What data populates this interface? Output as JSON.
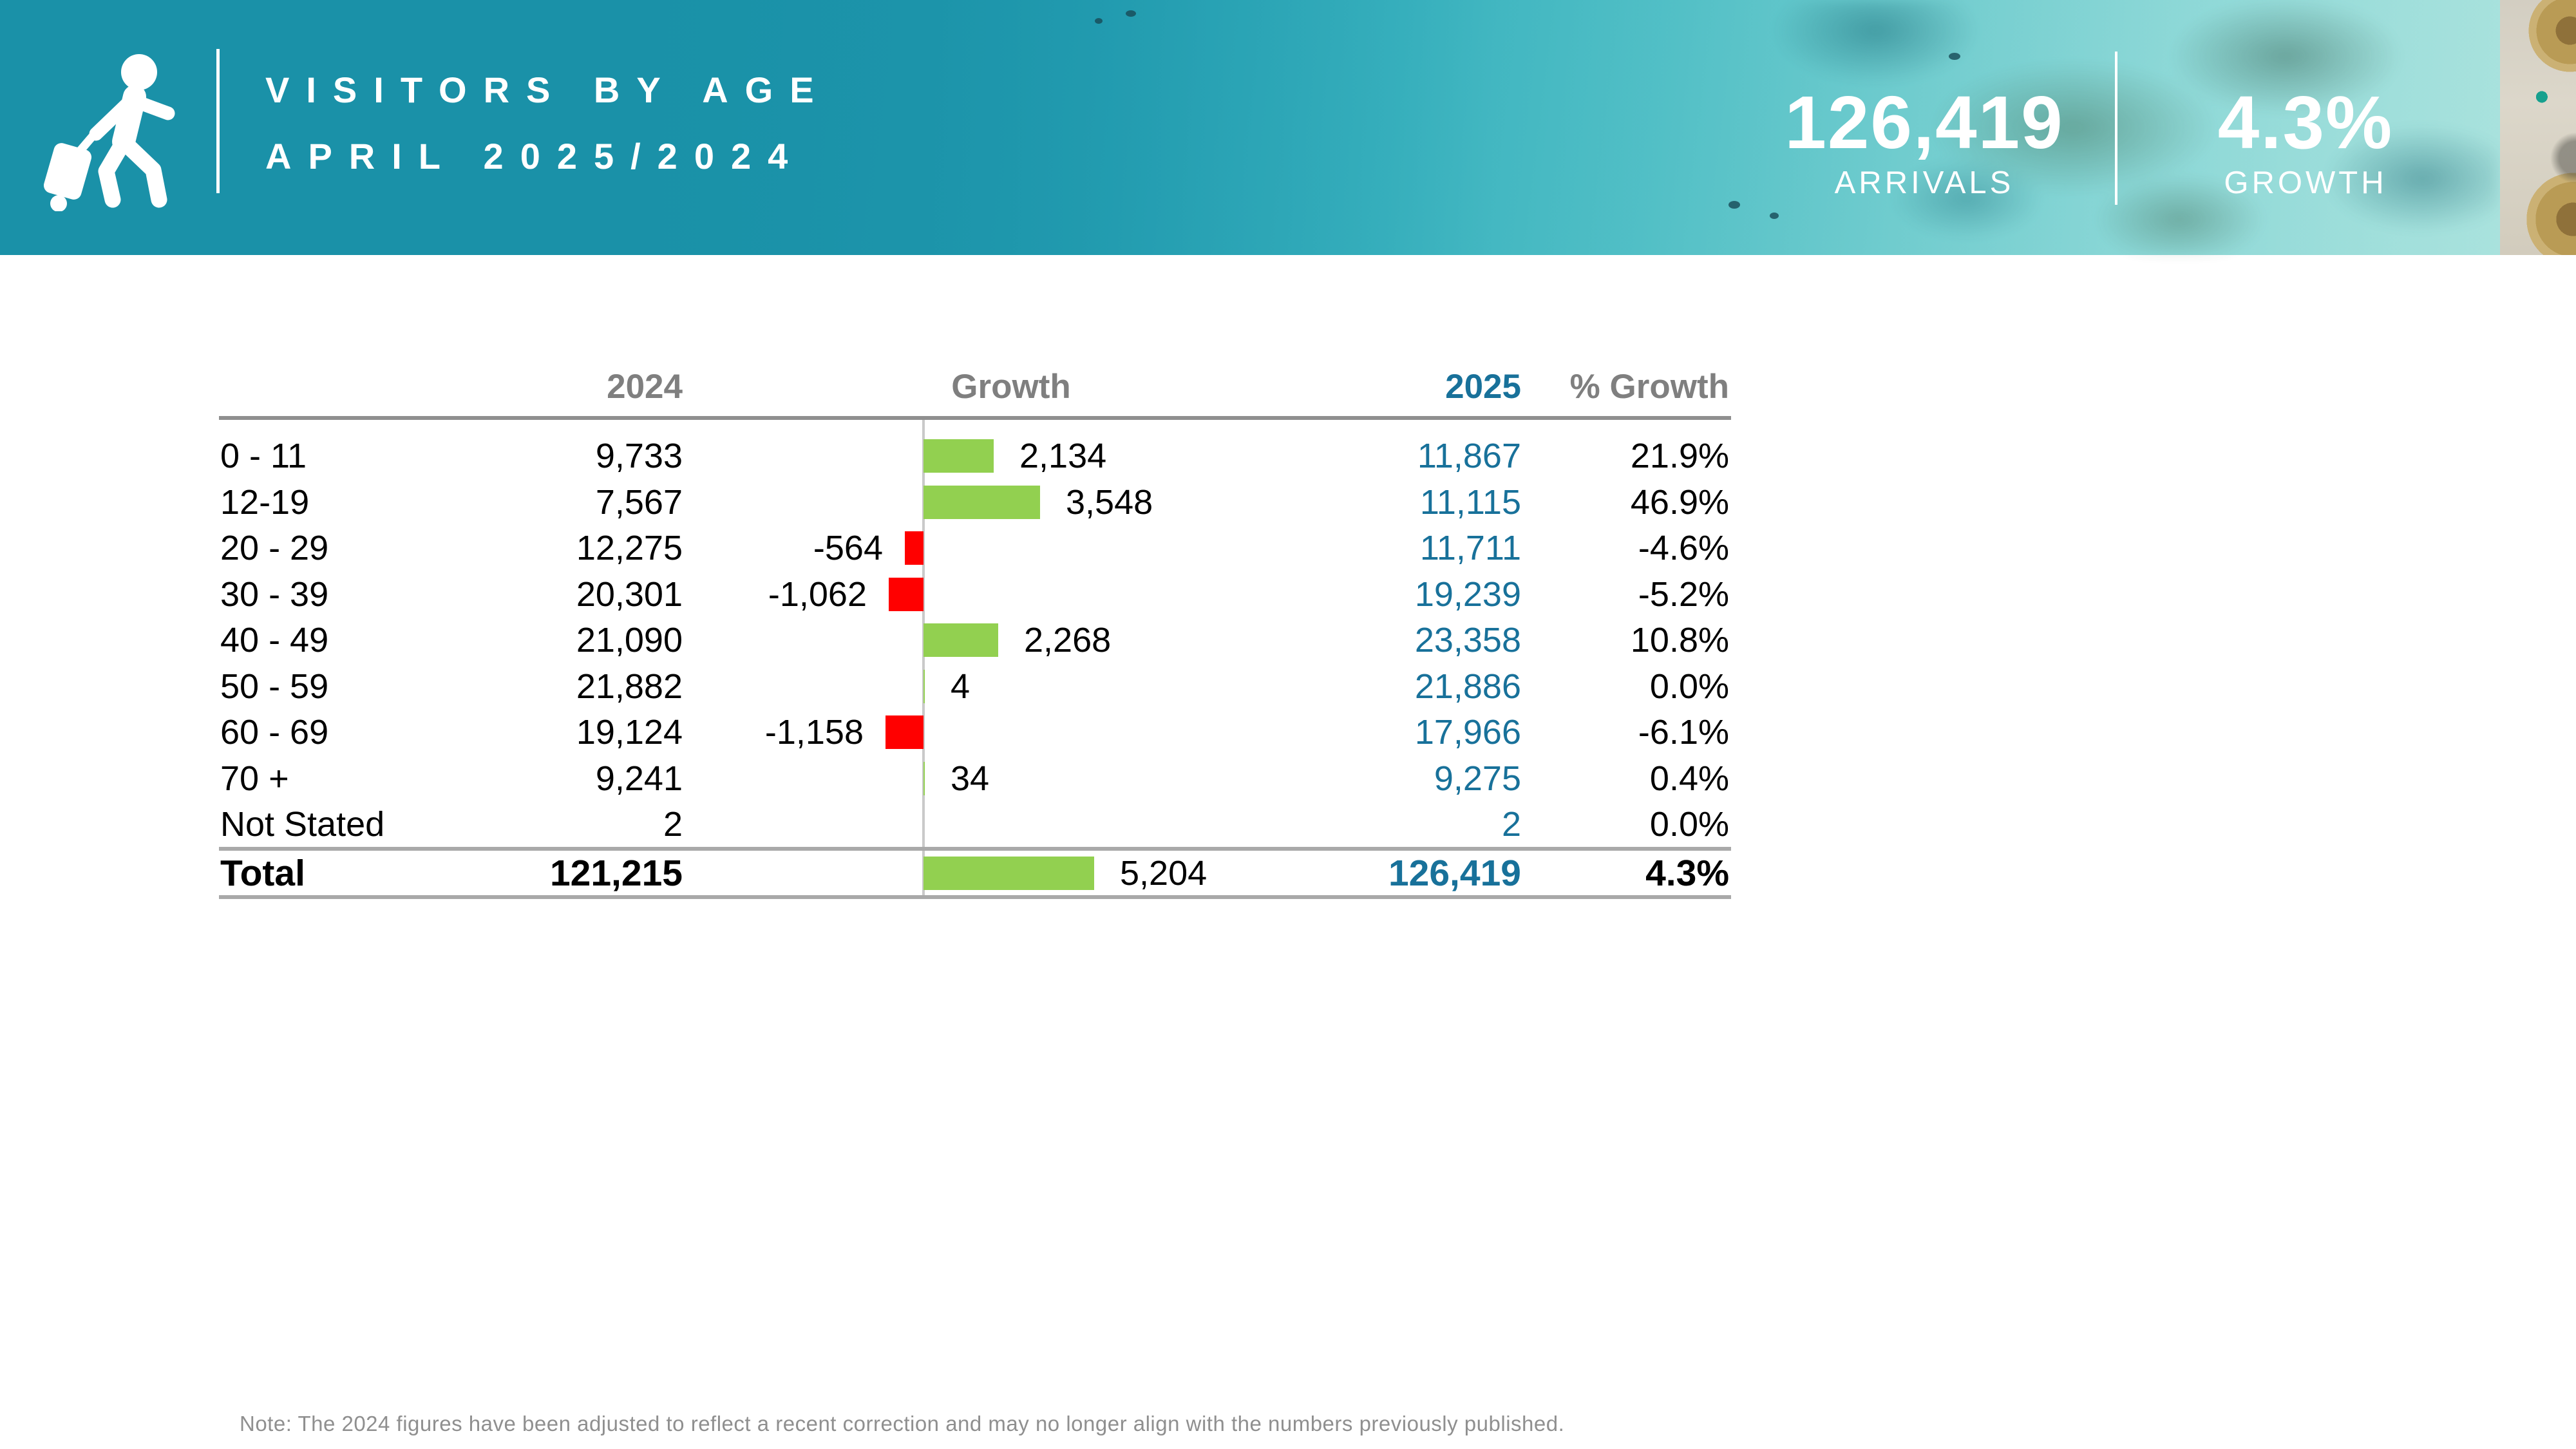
{
  "header": {
    "title_line1": "VISITORS BY AGE",
    "title_line2": "APRIL 2025/2024",
    "metrics": [
      {
        "value": "126,419",
        "label": "ARRIVALS"
      },
      {
        "value": "4.3%",
        "label": "GROWTH"
      }
    ],
    "icon": "traveler-with-luggage-icon",
    "band_color": "#1a91a8"
  },
  "table": {
    "col_2024": "2024",
    "col_growth": "Growth",
    "col_2025": "2025",
    "col_pct": "% Growth",
    "rows": [
      {
        "age": "0 - 11",
        "y2024": "9,733",
        "growth": 2134,
        "growth_label": "2,134",
        "y2025": "11,867",
        "pct": "21.9%"
      },
      {
        "age": "12-19",
        "y2024": "7,567",
        "growth": 3548,
        "growth_label": "3,548",
        "y2025": "11,115",
        "pct": "46.9%"
      },
      {
        "age": "20 - 29",
        "y2024": "12,275",
        "growth": -564,
        "growth_label": "-564",
        "y2025": "11,711",
        "pct": "-4.6%"
      },
      {
        "age": "30 - 39",
        "y2024": "20,301",
        "growth": -1062,
        "growth_label": "-1,062",
        "y2025": "19,239",
        "pct": "-5.2%"
      },
      {
        "age": "40 - 49",
        "y2024": "21,090",
        "growth": 2268,
        "growth_label": "2,268",
        "y2025": "23,358",
        "pct": "10.8%"
      },
      {
        "age": "50 - 59",
        "y2024": "21,882",
        "growth": 4,
        "growth_label": "4",
        "y2025": "21,886",
        "pct": "0.0%"
      },
      {
        "age": "60 - 69",
        "y2024": "19,124",
        "growth": -1158,
        "growth_label": "-1,158",
        "y2025": "17,966",
        "pct": "-6.1%"
      },
      {
        "age": "70 +",
        "y2024": "9,241",
        "growth": 34,
        "growth_label": "34",
        "y2025": "9,275",
        "pct": "0.4%"
      },
      {
        "age": "Not Stated",
        "y2024": "2",
        "growth": null,
        "growth_label": "",
        "y2025": "2",
        "pct": "0.0%"
      }
    ],
    "total": {
      "age": "Total",
      "y2024": "121,215",
      "growth": 5204,
      "growth_label": "5,204",
      "y2025": "126,419",
      "pct": "4.3%"
    }
  },
  "note": "Note: The 2024 figures have been adjusted to reflect a recent correction and may no longer align with the numbers previously published.",
  "colors": {
    "band_teal": "#1a91a8",
    "accent_teal_text": "#18719a",
    "positive_bar": "#92d050",
    "negative_bar": "#ff0000",
    "header_gray": "#7f7f7f",
    "line_gray": "#a9a9a9"
  },
  "chart_data": {
    "type": "bar",
    "orientation": "horizontal",
    "title": "Visitors by Age April 2025/2024",
    "categories": [
      "0 - 11",
      "12-19",
      "20 - 29",
      "30 - 39",
      "40 - 49",
      "50 - 59",
      "60 - 69",
      "70 +",
      "Not Stated"
    ],
    "series": [
      {
        "name": "2024",
        "values": [
          9733,
          7567,
          12275,
          20301,
          21090,
          21882,
          19124,
          9241,
          2
        ]
      },
      {
        "name": "Growth",
        "values": [
          2134,
          3548,
          -564,
          -1062,
          2268,
          4,
          -1158,
          34,
          0
        ]
      },
      {
        "name": "2025",
        "values": [
          11867,
          11115,
          11711,
          19239,
          23358,
          21886,
          17966,
          9275,
          2
        ]
      },
      {
        "name": "% Growth",
        "values": [
          21.9,
          46.9,
          -4.6,
          -5.2,
          10.8,
          0.0,
          -6.1,
          0.4,
          0.0
        ]
      }
    ],
    "totals": {
      "2024": 121215,
      "growth": 5204,
      "2025": 126419,
      "pct_growth": 4.3
    },
    "kpis": {
      "arrivals": 126419,
      "growth_pct": 4.3
    },
    "bar_colors": {
      "positive": "#92d050",
      "negative": "#ff0000"
    },
    "baseline_at_zero": true,
    "legend": false,
    "grid": false
  }
}
